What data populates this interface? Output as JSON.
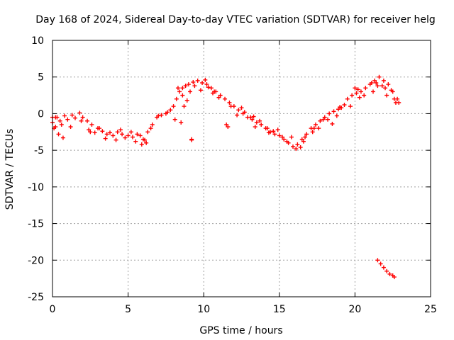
{
  "chart_data": {
    "type": "scatter",
    "title": "Day 168 of 2024, Sidereal Day-to-day VTEC variation (SDTVAR) for receiver helg",
    "xlabel": "GPS time / hours",
    "ylabel": "SDTVAR / TECUs",
    "xlim": [
      0,
      25
    ],
    "ylim": [
      -25,
      10
    ],
    "xticks": [
      0,
      5,
      10,
      15,
      20,
      25
    ],
    "yticks": [
      -25,
      -20,
      -15,
      -10,
      -5,
      0,
      5,
      10
    ],
    "xtick_labels": [
      "0",
      "5",
      "10",
      "15",
      "20",
      "25"
    ],
    "ytick_labels": [
      "-25",
      "-20",
      "-15",
      "-10",
      "-5",
      "0",
      "5",
      "10"
    ],
    "grid": true,
    "marker": "+",
    "color": "#ff0000",
    "series": [
      {
        "name": "SDTVAR",
        "x": [
          0.0,
          0.3,
          0.5,
          0.8,
          1.0,
          1.3,
          1.5,
          1.8,
          2.0,
          2.3,
          2.6,
          3.0,
          3.3,
          3.6,
          4.0,
          4.3,
          4.6,
          5.0,
          5.3,
          5.6,
          6.0,
          6.3,
          6.6,
          6.9,
          7.2,
          7.5,
          7.8,
          8.0,
          8.2,
          8.4,
          8.6,
          8.8,
          9.0,
          9.3,
          9.6,
          9.9,
          10.2,
          10.5,
          10.8,
          11.1,
          11.4,
          11.7,
          12.0,
          12.3,
          12.6,
          12.9,
          13.2,
          13.5,
          13.8,
          14.1,
          14.4,
          14.7,
          15.0,
          15.3,
          15.6,
          15.9,
          16.2,
          16.5,
          16.8,
          17.1,
          17.4,
          17.7,
          18.0,
          18.3,
          18.6,
          18.9,
          19.1,
          19.5,
          19.8,
          20.1,
          20.4,
          20.7,
          21.0,
          21.3,
          21.6,
          21.9,
          22.2,
          22.5,
          22.8,
          0.1,
          0.4,
          0.7,
          1.2,
          1.9,
          2.4,
          2.8,
          3.5,
          4.2,
          4.8,
          5.5,
          5.9,
          6.2,
          0.2,
          0.6,
          2.5,
          3.1,
          3.8,
          4.5,
          5.2,
          5.8,
          6.1,
          8.3,
          8.6,
          8.9,
          9.4,
          9.8,
          10.3,
          10.7,
          11.0,
          11.8,
          12.5,
          13.1,
          13.7,
          14.3,
          14.9,
          15.5,
          16.1,
          16.7,
          17.3,
          17.9,
          18.5,
          19.0,
          20.0,
          20.6,
          21.2,
          21.8,
          22.4,
          22.9,
          8.1,
          8.5,
          9.2,
          11.5,
          12.2,
          13.4,
          14.2,
          15.2,
          16.4,
          17.2,
          18.2,
          19.3,
          20.3,
          21.1,
          21.5,
          22.1,
          22.7,
          9.2,
          11.6,
          21.5,
          21.7,
          21.9,
          22.1,
          22.3,
          22.5,
          22.6,
          0.0,
          0.2,
          6.5,
          7.0,
          7.6,
          8.7,
          9.1,
          10.1,
          10.6,
          12.7,
          13.3,
          14.6,
          15.8,
          16.6,
          17.6,
          18.8,
          19.7,
          20.2,
          21.4,
          22.0,
          22.6
        ],
        "y": [
          -1.2,
          -0.5,
          -1.0,
          -0.3,
          -0.8,
          -0.2,
          -0.6,
          0.1,
          -0.5,
          -1.0,
          -1.5,
          -2.0,
          -2.4,
          -2.8,
          -3.0,
          -2.5,
          -2.8,
          -3.0,
          -3.2,
          -2.8,
          -3.5,
          -2.5,
          -1.5,
          -0.5,
          -0.2,
          0.0,
          0.5,
          1.0,
          2.0,
          3.0,
          3.5,
          3.8,
          4.0,
          4.3,
          4.5,
          4.2,
          4.0,
          3.5,
          3.0,
          2.5,
          2.0,
          1.5,
          1.0,
          0.5,
          0.0,
          -0.5,
          -0.8,
          -1.2,
          -1.5,
          -2.0,
          -2.5,
          -2.8,
          -3.0,
          -3.5,
          -4.0,
          -4.5,
          -4.2,
          -3.5,
          -2.8,
          -2.0,
          -1.5,
          -1.0,
          -0.5,
          0.0,
          0.3,
          0.6,
          0.8,
          2.0,
          2.5,
          2.8,
          3.0,
          3.5,
          4.0,
          4.5,
          5.0,
          4.5,
          4.0,
          3.0,
          2.0,
          -2.0,
          -2.8,
          -3.3,
          -1.8,
          -1.0,
          -2.2,
          -2.6,
          -3.4,
          -3.6,
          -3.3,
          -3.8,
          -4.2,
          -4.0,
          -0.5,
          -1.5,
          -2.5,
          -2.0,
          -2.6,
          -2.2,
          -2.5,
          -3.0,
          -3.6,
          3.5,
          2.5,
          1.8,
          3.8,
          3.2,
          3.6,
          3.0,
          2.2,
          1.0,
          0.8,
          -0.5,
          -1.0,
          -2.6,
          -2.2,
          -3.8,
          -4.8,
          -3.2,
          -2.0,
          -0.8,
          -1.4,
          0.9,
          3.5,
          2.5,
          3.0,
          3.8,
          3.2,
          1.5,
          -0.8,
          -1.2,
          -3.6,
          -1.5,
          -0.2,
          -1.8,
          -2.0,
          -3.2,
          -4.6,
          -2.5,
          -0.8,
          1.2,
          2.2,
          4.2,
          3.8,
          2.5,
          1.5,
          -3.5,
          -1.8,
          -20.0,
          -20.5,
          -21.0,
          -21.5,
          -21.9,
          -22.1,
          -22.3,
          -0.5,
          -1.8,
          -2.0,
          -0.3,
          0.2,
          1.0,
          3.0,
          4.6,
          2.8,
          0.2,
          -0.4,
          -2.4,
          -3.2,
          -3.8,
          -2.0,
          -0.3,
          1.0,
          3.3,
          4.2,
          3.5,
          2.0
        ]
      }
    ]
  }
}
